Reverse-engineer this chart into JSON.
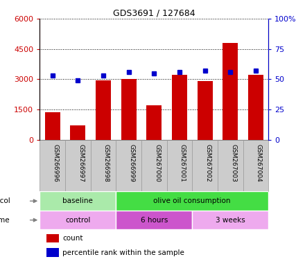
{
  "title": "GDS3691 / 127684",
  "samples": [
    "GSM266996",
    "GSM266997",
    "GSM266998",
    "GSM266999",
    "GSM267000",
    "GSM267001",
    "GSM267002",
    "GSM267003",
    "GSM267004"
  ],
  "counts": [
    1350,
    700,
    2950,
    3000,
    1700,
    3200,
    2900,
    4800,
    3200
  ],
  "percentile_ranks": [
    53,
    49,
    53,
    56,
    55,
    56,
    57,
    56,
    57
  ],
  "bar_color": "#cc0000",
  "dot_color": "#0000cc",
  "ylim_left": [
    0,
    6000
  ],
  "ylim_right": [
    0,
    100
  ],
  "yticks_left": [
    0,
    1500,
    3000,
    4500,
    6000
  ],
  "ytick_labels_left": [
    "0",
    "1500",
    "3000",
    "4500",
    "6000"
  ],
  "yticks_right": [
    0,
    25,
    50,
    75,
    100
  ],
  "ytick_labels_right": [
    "0",
    "25",
    "50",
    "75",
    "100%"
  ],
  "protocol_groups": [
    {
      "label": "baseline",
      "start": 0,
      "end": 3,
      "color": "#aaeaaa"
    },
    {
      "label": "olive oil consumption",
      "start": 3,
      "end": 9,
      "color": "#44dd44"
    }
  ],
  "time_groups": [
    {
      "label": "control",
      "start": 0,
      "end": 3,
      "color": "#eeaaee"
    },
    {
      "label": "6 hours",
      "start": 3,
      "end": 6,
      "color": "#cc55cc"
    },
    {
      "label": "3 weeks",
      "start": 6,
      "end": 9,
      "color": "#eeaaee"
    }
  ],
  "legend_items": [
    {
      "label": "count",
      "color": "#cc0000"
    },
    {
      "label": "percentile rank within the sample",
      "color": "#0000cc"
    }
  ],
  "tick_label_color_left": "#cc0000",
  "tick_label_color_right": "#0000cc",
  "sample_box_color": "#cccccc",
  "sample_box_edge": "#999999"
}
